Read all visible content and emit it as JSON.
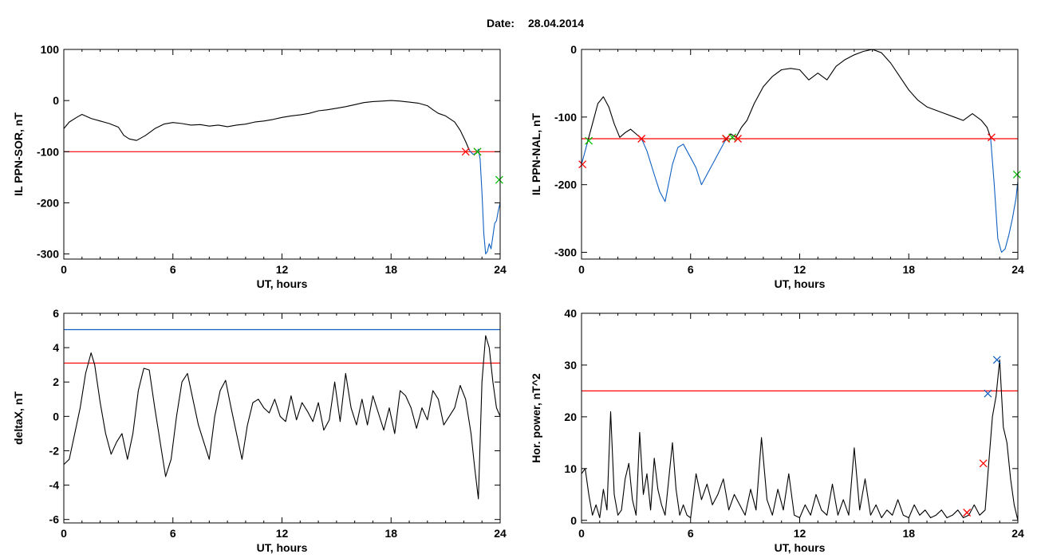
{
  "header": {
    "date_label": "Date:",
    "date_value": "28.04.2014"
  },
  "chart_data": [
    {
      "type": "line",
      "xlabel": "UT, hours",
      "ylabel": "IL PPN-SOR, nT",
      "xlim": [
        0,
        24
      ],
      "ylim": [
        -310,
        100
      ],
      "xticks": [
        0,
        6,
        12,
        18,
        24
      ],
      "yticks": [
        -300,
        -200,
        -100,
        0,
        100
      ],
      "threshold": {
        "y": -100,
        "color": "#ff0000"
      },
      "series": [
        {
          "color": "#000000",
          "x": [
            0,
            0.3,
            0.7,
            1,
            1.5,
            2,
            2.5,
            3,
            3.3,
            3.6,
            4,
            4.5,
            5,
            5.5,
            6,
            6.5,
            7,
            7.5,
            8,
            8.5,
            9,
            9.5,
            10,
            10.5,
            11,
            11.5,
            12,
            12.5,
            13,
            13.5,
            14,
            14.5,
            15,
            15.5,
            16,
            16.5,
            17,
            17.5,
            18,
            18.5,
            19,
            19.5,
            20,
            20.3,
            20.6,
            21,
            21.5,
            21.8,
            22.1,
            22.3
          ],
          "y": [
            -55,
            -42,
            -33,
            -27,
            -35,
            -40,
            -45,
            -52,
            -68,
            -75,
            -78,
            -68,
            -55,
            -46,
            -43,
            -45,
            -48,
            -47,
            -50,
            -48,
            -51,
            -48,
            -46,
            -42,
            -40,
            -37,
            -33,
            -30,
            -28,
            -25,
            -20,
            -18,
            -15,
            -12,
            -8,
            -4,
            -2,
            -1,
            0,
            -1,
            -3,
            -5,
            -10,
            -18,
            -25,
            -30,
            -42,
            -58,
            -80,
            -97
          ]
        },
        {
          "color": "#1060c0",
          "x": [
            22.3,
            22.5,
            22.7,
            22.8,
            22.9,
            23.0,
            23.1,
            23.2,
            23.3,
            23.4,
            23.5,
            23.6,
            23.7,
            23.8,
            23.9,
            24
          ],
          "y": [
            -97,
            -105,
            -103,
            -95,
            -115,
            -180,
            -260,
            -300,
            -295,
            -280,
            -290,
            -265,
            -240,
            -235,
            -215,
            -200
          ]
        }
      ],
      "markers": [
        {
          "x": 22.1,
          "y": -100,
          "color": "#ff0000"
        },
        {
          "x": 22.75,
          "y": -100,
          "color": "#ff0000"
        },
        {
          "x": 22.75,
          "y": -100,
          "color": "#00c000"
        },
        {
          "x": 23.95,
          "y": -155,
          "color": "#00c000"
        }
      ]
    },
    {
      "type": "line",
      "xlabel": "UT, hours",
      "ylabel": "IL PPN-NAL, nT",
      "xlim": [
        0,
        24
      ],
      "ylim": [
        -310,
        0
      ],
      "xticks": [
        0,
        6,
        12,
        18,
        24
      ],
      "yticks": [
        -300,
        -200,
        -100,
        0
      ],
      "threshold": {
        "y": -132,
        "color": "#ff0000"
      },
      "series": [
        {
          "color": "#000000",
          "x": [
            0.3,
            0.6,
            0.9,
            1.2,
            1.5,
            1.8,
            2.1,
            2.4,
            2.7,
            3.0,
            3.3
          ],
          "y": [
            -140,
            -110,
            -80,
            -70,
            -85,
            -110,
            -130,
            -123,
            -118,
            -125,
            -132
          ]
        },
        {
          "color": "#1060c0",
          "x": [
            3.3,
            3.6,
            4.0,
            4.3,
            4.6,
            5.0,
            5.3,
            5.6,
            6.0,
            6.3,
            6.6,
            7.0,
            7.3,
            7.6,
            7.9
          ],
          "y": [
            -132,
            -150,
            -185,
            -210,
            -225,
            -170,
            -145,
            -140,
            -160,
            -175,
            -200,
            -180,
            -165,
            -150,
            -135
          ]
        },
        {
          "color": "#000000",
          "x": [
            7.9,
            8.2,
            8.5,
            8.8,
            9.1,
            9.5,
            10,
            10.5,
            11,
            11.5,
            12,
            12.5,
            13,
            13.5,
            14,
            14.5,
            15,
            15.5,
            16,
            16.5,
            17,
            17.5,
            18,
            18.5,
            19,
            19.5,
            20,
            20.5,
            21,
            21.5,
            22,
            22.3,
            22.5
          ],
          "y": [
            -135,
            -125,
            -130,
            -115,
            -105,
            -80,
            -55,
            -40,
            -30,
            -28,
            -30,
            -45,
            -35,
            -45,
            -25,
            -15,
            -8,
            -3,
            0,
            -5,
            -20,
            -40,
            -60,
            -75,
            -85,
            -90,
            -95,
            -100,
            -105,
            -95,
            -105,
            -115,
            -130
          ]
        },
        {
          "color": "#1060c0",
          "x": [
            22.5,
            22.7,
            22.9,
            23.1,
            23.3,
            23.5,
            23.7,
            23.9,
            24
          ],
          "y": [
            -130,
            -200,
            -280,
            -300,
            -295,
            -275,
            -250,
            -220,
            -195
          ]
        },
        {
          "color": "#1060c0",
          "x": [
            0,
            0.1,
            0.2,
            0.3
          ],
          "y": [
            -170,
            -160,
            -150,
            -140
          ]
        }
      ],
      "markers": [
        {
          "x": 0.05,
          "y": -170,
          "color": "#ff0000"
        },
        {
          "x": 0.4,
          "y": -135,
          "color": "#00c000"
        },
        {
          "x": 3.3,
          "y": -132,
          "color": "#ff0000"
        },
        {
          "x": 7.95,
          "y": -132,
          "color": "#00c000"
        },
        {
          "x": 7.95,
          "y": -132,
          "color": "#ff0000"
        },
        {
          "x": 8.3,
          "y": -130,
          "color": "#00c000"
        },
        {
          "x": 8.6,
          "y": -132,
          "color": "#ff0000"
        },
        {
          "x": 22.55,
          "y": -130,
          "color": "#ff0000"
        },
        {
          "x": 23.95,
          "y": -185,
          "color": "#00c000"
        }
      ]
    },
    {
      "type": "line",
      "xlabel": "UT, hours",
      "ylabel": "deltaX, nT",
      "xlim": [
        0,
        24
      ],
      "ylim": [
        -6.2,
        6
      ],
      "xticks": [
        0,
        6,
        12,
        18,
        24
      ],
      "yticks": [
        -6,
        -4,
        -2,
        0,
        2,
        4,
        6
      ],
      "thresholds": [
        {
          "y": 5.05,
          "color": "#1060c0"
        },
        {
          "y": 3.1,
          "color": "#ff0000"
        }
      ],
      "series": [
        {
          "color": "#000000",
          "x": [
            0,
            0.3,
            0.6,
            0.9,
            1.2,
            1.5,
            1.7,
            2.0,
            2.3,
            2.6,
            2.9,
            3.2,
            3.5,
            3.8,
            4.1,
            4.4,
            4.7,
            5.0,
            5.3,
            5.6,
            5.9,
            6.2,
            6.5,
            6.8,
            7.1,
            7.4,
            7.7,
            8.0,
            8.3,
            8.6,
            8.9,
            9.2,
            9.5,
            9.8,
            10.1,
            10.4,
            10.7,
            11.0,
            11.3,
            11.6,
            11.9,
            12.2,
            12.5,
            12.8,
            13.1,
            13.4,
            13.7,
            14.0,
            14.3,
            14.6,
            14.9,
            15.2,
            15.5,
            15.8,
            16.1,
            16.4,
            16.7,
            17.0,
            17.3,
            17.6,
            17.9,
            18.2,
            18.5,
            18.8,
            19.1,
            19.4,
            19.7,
            20.0,
            20.3,
            20.6,
            20.9,
            21.2,
            21.5,
            21.8,
            22.1,
            22.4,
            22.6,
            22.8,
            23.0,
            23.2,
            23.4,
            23.6,
            23.8,
            24
          ],
          "y": [
            -2.8,
            -2.5,
            -1.0,
            0.5,
            2.5,
            3.7,
            3.0,
            0.8,
            -1.0,
            -2.2,
            -1.5,
            -1.0,
            -2.5,
            -1.0,
            1.5,
            2.8,
            2.7,
            0.5,
            -1.5,
            -3.5,
            -2.5,
            0.0,
            2.0,
            2.5,
            1.0,
            -0.5,
            -1.5,
            -2.5,
            0.0,
            1.5,
            2.1,
            0.5,
            -1.0,
            -2.5,
            -0.5,
            0.8,
            1.0,
            0.5,
            0.2,
            1.0,
            0.0,
            -0.3,
            1.2,
            -0.2,
            0.8,
            0.3,
            -0.3,
            0.8,
            -0.8,
            -0.2,
            2.0,
            -0.3,
            2.5,
            0.5,
            -0.5,
            1.0,
            -0.5,
            1.2,
            0.2,
            -0.8,
            0.5,
            -1.0,
            1.5,
            1.2,
            0.5,
            -0.7,
            0.5,
            -0.2,
            1.5,
            1.0,
            -0.5,
            0.0,
            0.5,
            1.8,
            1.0,
            -1.0,
            -3.0,
            -4.8,
            2.0,
            4.7,
            4.0,
            2.0,
            0.5,
            0.0
          ]
        }
      ],
      "markers": []
    },
    {
      "type": "line",
      "xlabel": "UT, hours",
      "ylabel": "Hor. power, nT^2",
      "xlim": [
        0,
        24
      ],
      "ylim": [
        -0.5,
        40
      ],
      "xticks": [
        0,
        6,
        12,
        18,
        24
      ],
      "yticks": [
        0,
        10,
        20,
        30,
        40
      ],
      "threshold": {
        "y": 25,
        "color": "#ff0000"
      },
      "series": [
        {
          "color": "#000000",
          "x": [
            0,
            0.2,
            0.4,
            0.6,
            0.8,
            1.0,
            1.2,
            1.4,
            1.6,
            1.8,
            2.0,
            2.2,
            2.4,
            2.6,
            2.8,
            3.0,
            3.2,
            3.4,
            3.6,
            3.8,
            4.0,
            4.2,
            4.4,
            4.6,
            4.8,
            5.0,
            5.2,
            5.4,
            5.6,
            5.8,
            6.0,
            6.3,
            6.6,
            6.9,
            7.2,
            7.5,
            7.8,
            8.1,
            8.4,
            8.7,
            9.0,
            9.3,
            9.6,
            9.9,
            10.2,
            10.5,
            10.8,
            11.1,
            11.4,
            11.7,
            12.0,
            12.3,
            12.6,
            12.9,
            13.2,
            13.5,
            13.8,
            14.1,
            14.4,
            14.7,
            15.0,
            15.3,
            15.6,
            15.9,
            16.2,
            16.5,
            16.8,
            17.1,
            17.4,
            17.7,
            18.0,
            18.3,
            18.6,
            18.9,
            19.2,
            19.5,
            19.8,
            20.1,
            20.4,
            20.7,
            21.0,
            21.3,
            21.6,
            21.9,
            22.2,
            22.4,
            22.6,
            22.8,
            23.0,
            23.2,
            23.4,
            23.6,
            23.8,
            24
          ],
          "y": [
            9,
            10,
            5,
            1,
            3,
            0.5,
            6,
            2,
            21,
            5,
            1,
            2,
            8,
            11,
            4,
            1,
            17,
            5,
            9,
            2,
            12,
            6,
            3,
            1,
            8,
            15,
            6,
            1,
            3,
            1,
            0.5,
            9,
            4,
            7,
            3,
            5,
            8,
            2,
            5,
            3,
            1,
            6,
            2,
            16,
            4,
            1,
            6,
            2,
            9,
            1,
            0.5,
            3,
            1,
            5,
            2,
            1,
            7,
            1,
            4,
            1,
            14,
            2,
            8,
            1,
            3,
            0.5,
            2,
            1,
            4,
            1,
            0.5,
            3,
            1,
            2,
            0.5,
            1,
            2,
            0.5,
            1,
            2,
            0.5,
            1,
            3,
            1,
            2,
            11,
            20,
            24,
            31,
            18,
            15,
            8,
            3,
            0
          ]
        }
      ],
      "markers": [
        {
          "x": 21.2,
          "y": 1.5,
          "color": "#ff0000"
        },
        {
          "x": 22.1,
          "y": 11,
          "color": "#ff0000"
        },
        {
          "x": 22.35,
          "y": 24.5,
          "color": "#1060c0"
        },
        {
          "x": 22.85,
          "y": 31,
          "color": "#1060c0"
        }
      ]
    }
  ]
}
